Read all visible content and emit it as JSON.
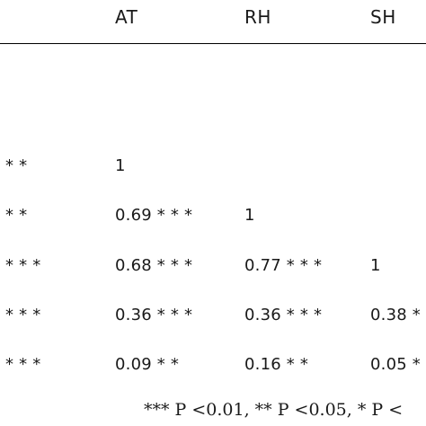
{
  "table": {
    "headers": [
      "AT",
      "RH",
      "SH"
    ],
    "rows": [
      {
        "c0": "* *",
        "c1": "1",
        "c2": "",
        "c3": ""
      },
      {
        "c0": "* *",
        "c1": "0.69 * * *",
        "c2": "1",
        "c3": ""
      },
      {
        "c0": "* * *",
        "c1": "0.68 * * *",
        "c2": "0.77 * * *",
        "c3": "1"
      },
      {
        "c0": "* * *",
        "c1": "0.36 * * *",
        "c2": "0.36 * * *",
        "c3": "0.38 *"
      },
      {
        "c0": "* * *",
        "c1": "0.09 * *",
        "c2": "0.16 * *",
        "c3": "0.05 *"
      }
    ],
    "footnote": "*** P <0.01, ** P <0.05, * P <"
  }
}
